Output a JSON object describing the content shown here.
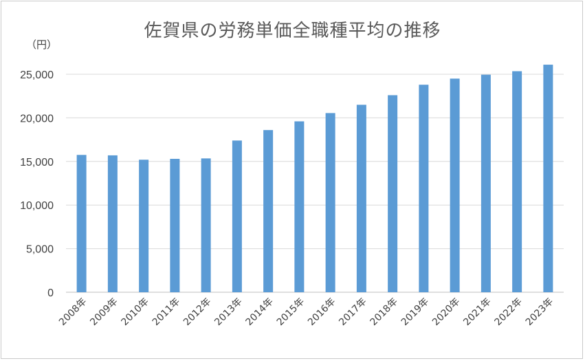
{
  "chart_data": {
    "type": "bar",
    "title": "佐賀県の労務単価全職種平均の推移",
    "unit_label": "（円）",
    "categories": [
      "2008年",
      "2009年",
      "2010年",
      "2011年",
      "2012年",
      "2013年",
      "2014年",
      "2015年",
      "2016年",
      "2017年",
      "2018年",
      "2019年",
      "2020年",
      "2021年",
      "2022年",
      "2023年"
    ],
    "values": [
      15750,
      15700,
      15200,
      15300,
      15350,
      17400,
      18600,
      19600,
      20550,
      21500,
      22600,
      23800,
      24500,
      24950,
      25350,
      26100
    ],
    "ylim": [
      0,
      25000
    ],
    "yticks": [
      0,
      5000,
      10000,
      15000,
      20000,
      25000
    ],
    "ytick_labels": [
      "0",
      "5,000",
      "10,000",
      "15,000",
      "20,000",
      "25,000"
    ],
    "grid": true,
    "bar_color": "#5b9bd5",
    "grid_color": "#d9d9d9",
    "legend": false
  }
}
